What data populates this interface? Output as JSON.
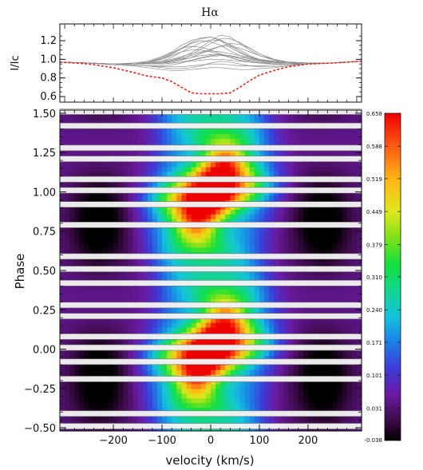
{
  "chart_data": [
    {
      "type": "line",
      "title": "Hα",
      "ylabel": "I/Ic",
      "xlim": [
        -310,
        310
      ],
      "ylim": [
        0.54,
        1.38
      ],
      "yticks": [
        "0.6",
        "0.8",
        "1.0",
        "1.2"
      ],
      "ytick_values": [
        0.6,
        0.8,
        1.0,
        1.2
      ],
      "reference_line": {
        "style": "dashed",
        "color": "#e8231f",
        "x": [
          -310,
          -250,
          -200,
          -160,
          -130,
          -100,
          -80,
          -60,
          -40,
          -20,
          0,
          20,
          40,
          60,
          80,
          100,
          130,
          160,
          200,
          250,
          310
        ],
        "y": [
          0.97,
          0.95,
          0.91,
          0.86,
          0.82,
          0.8,
          0.76,
          0.7,
          0.64,
          0.63,
          0.63,
          0.63,
          0.64,
          0.7,
          0.77,
          0.83,
          0.88,
          0.92,
          0.95,
          0.96,
          0.98
        ]
      },
      "profile_lines": {
        "color": "#8a8a8a",
        "x": [
          -310,
          -250,
          -200,
          -160,
          -130,
          -100,
          -80,
          -60,
          -40,
          -20,
          0,
          20,
          40,
          60,
          80,
          100,
          130,
          160,
          200,
          250,
          310
        ],
        "y": [
          [
            0.97,
            0.96,
            0.95,
            0.95,
            0.97,
            1.01,
            1.06,
            1.12,
            1.18,
            1.22,
            1.24,
            1.2,
            1.13,
            1.07,
            1.02,
            0.99,
            0.97,
            0.96,
            0.96,
            0.96,
            0.98
          ],
          [
            0.97,
            0.96,
            0.95,
            0.95,
            0.96,
            0.98,
            1.02,
            1.08,
            1.13,
            1.18,
            1.21,
            1.2,
            1.16,
            1.1,
            1.04,
            1.0,
            0.97,
            0.96,
            0.96,
            0.96,
            0.98
          ],
          [
            0.97,
            0.96,
            0.95,
            0.95,
            0.97,
            1.0,
            1.05,
            1.11,
            1.17,
            1.2,
            1.19,
            1.15,
            1.09,
            1.04,
            1.0,
            0.98,
            0.97,
            0.96,
            0.96,
            0.96,
            0.98
          ],
          [
            0.97,
            0.96,
            0.95,
            0.96,
            0.98,
            1.03,
            1.08,
            1.15,
            1.2,
            1.23,
            1.24,
            1.21,
            1.15,
            1.08,
            1.03,
            0.99,
            0.97,
            0.96,
            0.96,
            0.96,
            0.98
          ],
          [
            0.97,
            0.96,
            0.95,
            0.95,
            0.96,
            0.97,
            0.99,
            1.02,
            1.07,
            1.13,
            1.2,
            1.26,
            1.24,
            1.17,
            1.1,
            1.04,
            0.99,
            0.97,
            0.96,
            0.96,
            0.98
          ],
          [
            0.97,
            0.96,
            0.95,
            0.95,
            0.95,
            0.96,
            0.98,
            1.0,
            1.05,
            1.11,
            1.17,
            1.22,
            1.22,
            1.18,
            1.12,
            1.06,
            1.0,
            0.97,
            0.96,
            0.96,
            0.98
          ],
          [
            0.97,
            0.96,
            0.95,
            0.95,
            0.96,
            0.97,
            0.99,
            1.01,
            1.04,
            1.07,
            1.11,
            1.14,
            1.14,
            1.12,
            1.08,
            1.04,
            1.0,
            0.97,
            0.96,
            0.96,
            0.98
          ],
          [
            0.97,
            0.96,
            0.95,
            0.95,
            0.96,
            0.98,
            1.0,
            1.03,
            1.06,
            1.08,
            1.09,
            1.08,
            1.06,
            1.04,
            1.02,
            1.0,
            0.98,
            0.97,
            0.96,
            0.96,
            0.98
          ],
          [
            0.97,
            0.96,
            0.95,
            0.95,
            0.96,
            0.97,
            0.98,
            1.0,
            1.02,
            1.04,
            1.05,
            1.05,
            1.04,
            1.02,
            1.01,
            0.99,
            0.98,
            0.97,
            0.96,
            0.96,
            0.98
          ],
          [
            0.97,
            0.96,
            0.95,
            0.95,
            0.95,
            0.95,
            0.96,
            0.97,
            0.98,
            0.99,
            1.0,
            1.0,
            0.99,
            0.98,
            0.97,
            0.97,
            0.96,
            0.96,
            0.96,
            0.96,
            0.98
          ],
          [
            0.97,
            0.96,
            0.95,
            0.94,
            0.93,
            0.92,
            0.92,
            0.92,
            0.93,
            0.94,
            0.95,
            0.95,
            0.94,
            0.93,
            0.93,
            0.93,
            0.94,
            0.95,
            0.95,
            0.96,
            0.98
          ],
          [
            0.97,
            0.96,
            0.94,
            0.93,
            0.91,
            0.89,
            0.88,
            0.88,
            0.89,
            0.9,
            0.91,
            0.91,
            0.9,
            0.89,
            0.89,
            0.9,
            0.91,
            0.93,
            0.95,
            0.96,
            0.98
          ],
          [
            0.97,
            0.96,
            0.95,
            0.94,
            0.93,
            0.91,
            0.9,
            0.9,
            0.91,
            0.93,
            0.96,
            0.98,
            0.97,
            0.95,
            0.93,
            0.92,
            0.92,
            0.94,
            0.95,
            0.96,
            0.98
          ],
          [
            0.97,
            0.96,
            0.95,
            0.95,
            0.96,
            1.0,
            1.04,
            1.08,
            1.1,
            1.1,
            1.08,
            1.05,
            1.02,
            0.99,
            0.97,
            0.96,
            0.96,
            0.96,
            0.96,
            0.96,
            0.98
          ],
          [
            0.97,
            0.96,
            0.95,
            0.95,
            0.97,
            1.02,
            1.07,
            1.12,
            1.14,
            1.13,
            1.1,
            1.06,
            1.02,
            0.99,
            0.97,
            0.96,
            0.96,
            0.96,
            0.96,
            0.96,
            0.98
          ],
          [
            0.97,
            0.96,
            0.95,
            0.95,
            0.95,
            0.96,
            0.97,
            0.99,
            1.02,
            1.06,
            1.1,
            1.14,
            1.17,
            1.16,
            1.12,
            1.06,
            1.0,
            0.97,
            0.96,
            0.96,
            0.98
          ],
          [
            0.97,
            0.96,
            0.95,
            0.94,
            0.93,
            0.93,
            0.94,
            0.96,
            0.99,
            1.02,
            1.04,
            1.05,
            1.04,
            1.01,
            0.98,
            0.96,
            0.95,
            0.95,
            0.96,
            0.96,
            0.98
          ],
          [
            0.97,
            0.96,
            0.95,
            0.95,
            0.95,
            0.95,
            0.96,
            0.97,
            0.99,
            1.01,
            1.03,
            1.04,
            1.03,
            1.01,
            0.99,
            0.98,
            0.97,
            0.96,
            0.96,
            0.96,
            0.98
          ]
        ]
      }
    },
    {
      "type": "heatmap",
      "xlabel": "velocity (km/s)",
      "ylabel": "Phase",
      "xlim": [
        -310,
        310
      ],
      "ylim": [
        -0.52,
        1.52
      ],
      "xticks": [
        "−200",
        "−100",
        "0",
        "100",
        "200"
      ],
      "xtick_values": [
        -200,
        -100,
        0,
        100,
        200
      ],
      "yticks": [
        "−0.50",
        "−0.25",
        "0.00",
        "0.25",
        "0.50",
        "0.75",
        "1.00",
        "1.25",
        "1.50"
      ],
      "ytick_values": [
        -0.5,
        -0.25,
        0.0,
        0.25,
        0.5,
        0.75,
        1.0,
        1.25,
        1.5
      ],
      "observed_phases": [
        -0.49,
        -0.41,
        -0.19,
        -0.08,
        0.01,
        0.08,
        0.21,
        0.28,
        0.42,
        0.51,
        0.59,
        0.79,
        0.92,
        1.01,
        1.08,
        1.21,
        1.28,
        1.42,
        1.51
      ],
      "colorbar": {
        "range": [
          -0.038,
          0.658
        ],
        "ticks": [
          "0.658",
          "0.588",
          "0.519",
          "0.449",
          "0.379",
          "0.310",
          "0.240",
          "0.171",
          "0.101",
          "0.031",
          "-0.038"
        ],
        "tick_values": [
          0.658,
          0.588,
          0.519,
          0.449,
          0.379,
          0.31,
          0.24,
          0.171,
          0.101,
          0.031,
          -0.038
        ]
      }
    }
  ]
}
